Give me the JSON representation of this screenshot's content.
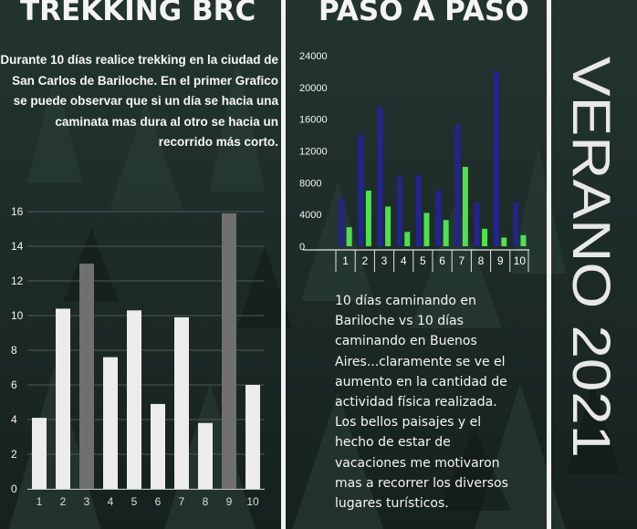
{
  "left": {
    "title": "TREKKING BRC",
    "intro": "Durante 10 días realice trekking en la ciudad de San Carlos de Bariloche. En el primer Grafico se puede observar que si un día se hacia una caminata mas dura al otro se hacia un recorrido más corto."
  },
  "right": {
    "title": "PASO A PASO",
    "description": "10 días caminando en Bariloche vs 10 días caminando en Buenos Aires...claramente se ve el aumento en la cantidad de actividad física realizada. Los bellos paisajes y el hecho de estar de vacaciones me motivaron mas a recorrer los diversos lugares turísticos."
  },
  "side_banner": {
    "text": "VERANO 2021"
  },
  "colors": {
    "bar_light": "#ececec",
    "bar_dark": "#707070",
    "series_a": "#23248f",
    "series_b": "#4fe14f",
    "text": "#f4f4f4"
  },
  "chart_data": [
    {
      "type": "bar",
      "categories": [
        "1",
        "2",
        "3",
        "4",
        "5",
        "6",
        "7",
        "8",
        "9",
        "10"
      ],
      "values": [
        4.1,
        10.4,
        13,
        7.6,
        10.3,
        4.9,
        9.9,
        3.8,
        15.9,
        6
      ],
      "highlighted": [
        "3",
        "9"
      ],
      "ylim": [
        0,
        16
      ],
      "yticks": [
        0,
        2,
        4,
        6,
        8,
        10,
        12,
        14,
        16
      ],
      "grid": true
    },
    {
      "type": "bar",
      "categories": [
        "1",
        "2",
        "3",
        "4",
        "5",
        "6",
        "7",
        "8",
        "9",
        "10"
      ],
      "series": [
        {
          "values": [
            6000,
            14000,
            17500,
            8800,
            8900,
            7000,
            15300,
            5500,
            22000,
            5500
          ]
        },
        {
          "values": [
            2400,
            7000,
            5000,
            1800,
            4200,
            3300,
            10000,
            2200,
            1100,
            1400
          ]
        }
      ],
      "ylim": [
        0,
        24000
      ],
      "yticks": [
        0,
        4000,
        8000,
        12000,
        16000,
        20000,
        24000
      ],
      "grid": false
    }
  ]
}
